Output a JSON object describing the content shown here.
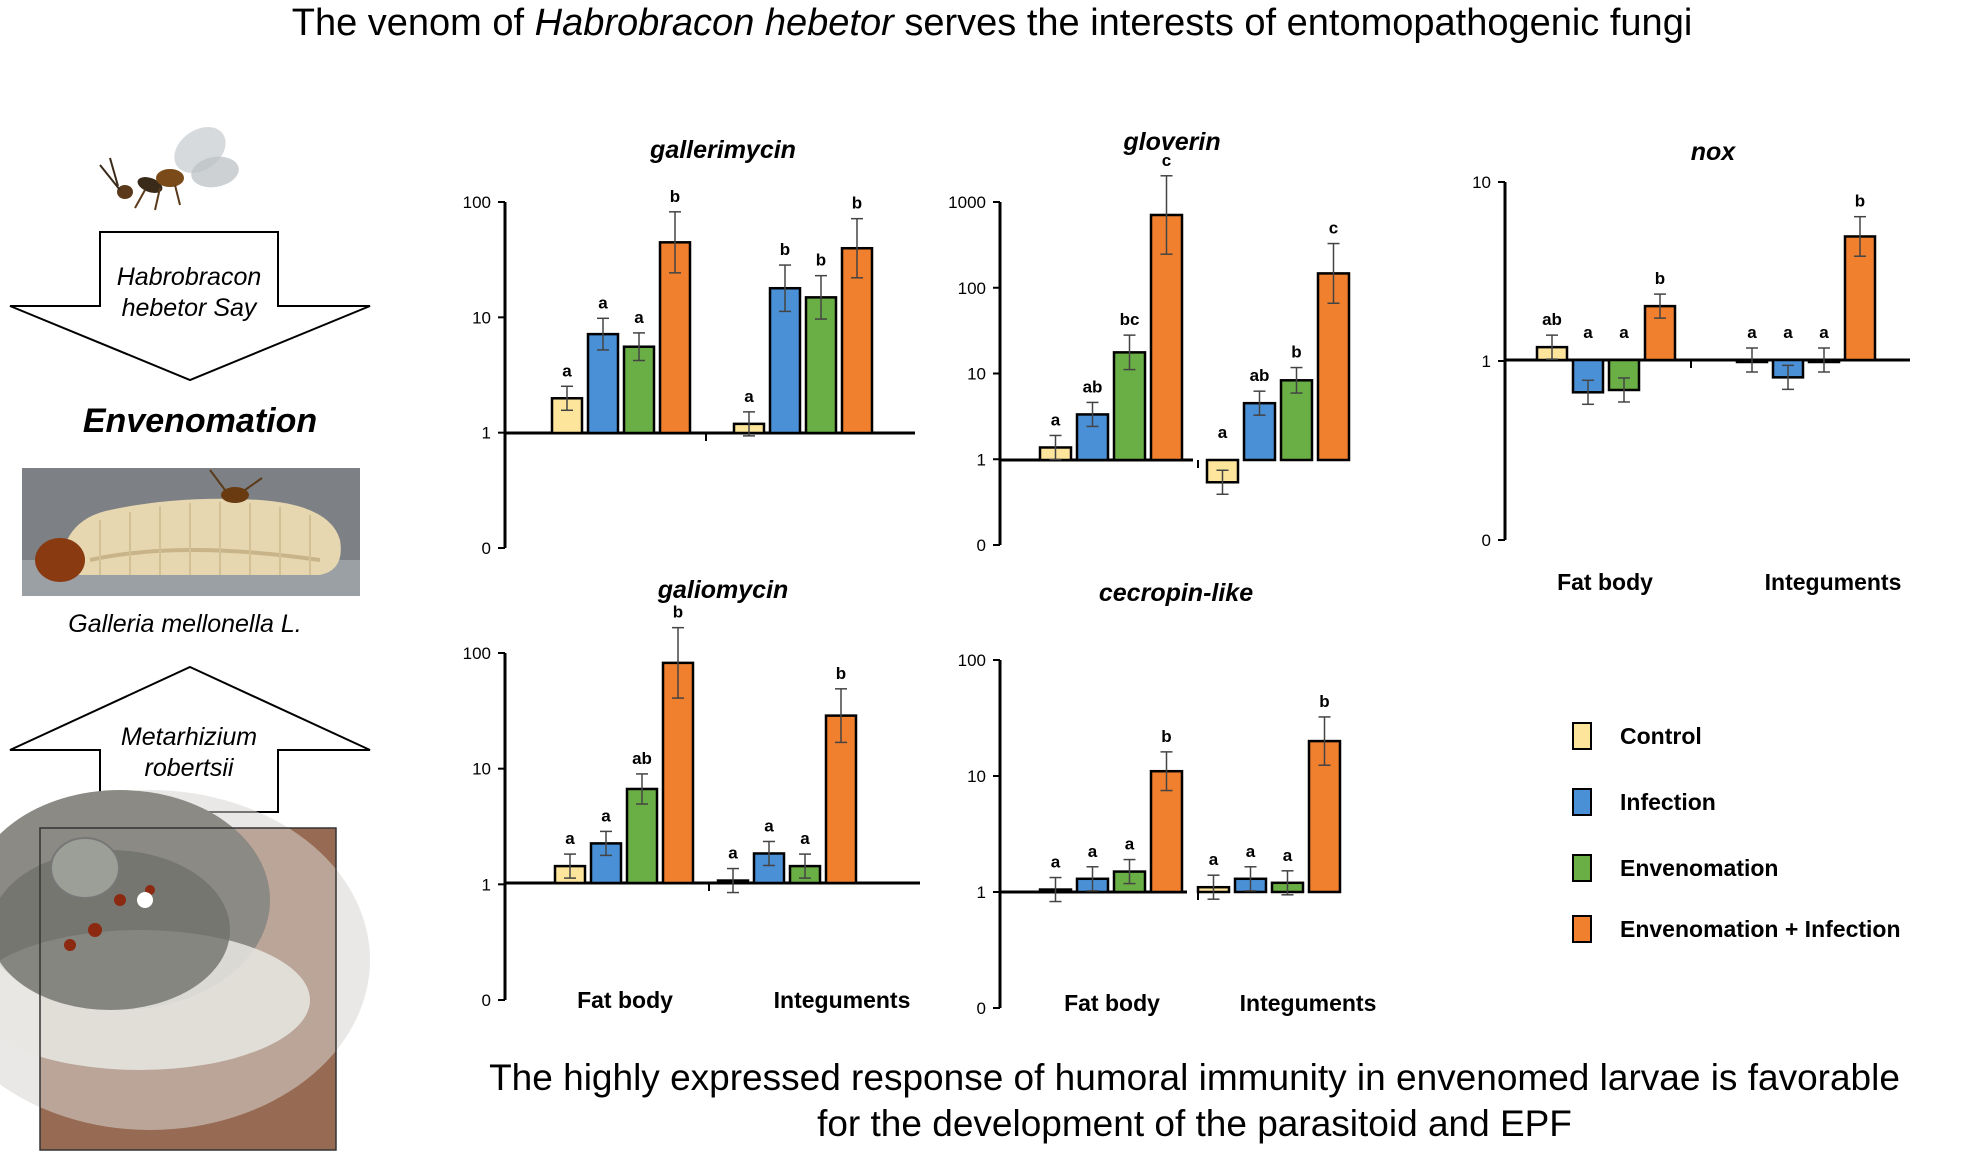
{
  "header": {
    "title_pre": "The venom of ",
    "title_italic": "Habrobracon hebetor",
    "title_post": " serves the interests of entomopathogenic fungi"
  },
  "left_panel": {
    "arrow_down_line1": "Habrobracon",
    "arrow_down_line2": "hebetor Say",
    "envenomation_label": "Envenomation",
    "host_label": "Galleria mellonella L.",
    "arrow_up_line1": "Metarhizium",
    "arrow_up_line2": "robertsii"
  },
  "footer": {
    "line1": "The highly expressed response of humoral immunity in envenomed larvae is favorable",
    "line2": "for the development of the parasitoid and EPF"
  },
  "legend": [
    {
      "label": "Control",
      "color": "#FDE59B"
    },
    {
      "label": "Infection",
      "color": "#4A90D6"
    },
    {
      "label": "Envenomation",
      "color": "#6AAF45"
    },
    {
      "label": "Envenomation + Infection",
      "color": "#F07F2E"
    }
  ],
  "chart_data": [
    {
      "type": "bar",
      "title": "gallerimycin",
      "yscale": "log",
      "yticks": [
        "0",
        "1",
        "10",
        "100"
      ],
      "categories": [
        "Fat body",
        "Integuments"
      ],
      "series": [
        {
          "name": "Control",
          "values": [
            2.0,
            1.2
          ],
          "letters": [
            "a",
            "a"
          ]
        },
        {
          "name": "Infection",
          "values": [
            7.2,
            18.0
          ],
          "letters": [
            "a",
            "b"
          ]
        },
        {
          "name": "Envenomation",
          "values": [
            5.6,
            15.0
          ],
          "letters": [
            "a",
            "b"
          ]
        },
        {
          "name": "Envenomation + Infection",
          "values": [
            45.0,
            40.0
          ],
          "letters": [
            "b",
            "b"
          ]
        }
      ]
    },
    {
      "type": "bar",
      "title": "gloverin",
      "yscale": "log",
      "yticks": [
        "0",
        "1",
        "10",
        "100",
        "1000"
      ],
      "categories": [
        "Fat body",
        "Integuments"
      ],
      "series": [
        {
          "name": "Control",
          "values": [
            1.4,
            0.55
          ],
          "letters": [
            "a",
            "a"
          ]
        },
        {
          "name": "Infection",
          "values": [
            3.4,
            4.6
          ],
          "letters": [
            "ab",
            "ab"
          ]
        },
        {
          "name": "Envenomation",
          "values": [
            18.0,
            8.5
          ],
          "letters": [
            "bc",
            "b"
          ]
        },
        {
          "name": "Envenomation + Infection",
          "values": [
            720.0,
            150.0
          ],
          "letters": [
            "c",
            "c"
          ]
        }
      ]
    },
    {
      "type": "bar",
      "title": "nox",
      "yscale": "log",
      "yticks": [
        "0",
        "1",
        "10"
      ],
      "categories": [
        "Fat body",
        "Integuments"
      ],
      "series": [
        {
          "name": "Control",
          "values": [
            1.18,
            1.0
          ],
          "letters": [
            "ab",
            "a"
          ]
        },
        {
          "name": "Infection",
          "values": [
            0.66,
            0.8
          ],
          "letters": [
            "a",
            "a"
          ]
        },
        {
          "name": "Envenomation",
          "values": [
            0.68,
            1.0
          ],
          "letters": [
            "a",
            "a"
          ]
        },
        {
          "name": "Envenomation + Infection",
          "values": [
            2.0,
            4.9
          ],
          "letters": [
            "b",
            "b"
          ]
        }
      ]
    },
    {
      "type": "bar",
      "title": "galiomycin",
      "yscale": "log",
      "yticks": [
        "0",
        "1",
        "10",
        "100"
      ],
      "categories": [
        "Fat body",
        "Integuments"
      ],
      "series": [
        {
          "name": "Control",
          "values": [
            1.4,
            1.05
          ],
          "letters": [
            "a",
            "a"
          ]
        },
        {
          "name": "Infection",
          "values": [
            2.2,
            1.8
          ],
          "letters": [
            "a",
            "a"
          ]
        },
        {
          "name": "Envenomation",
          "values": [
            6.5,
            1.4
          ],
          "letters": [
            "ab",
            "a"
          ]
        },
        {
          "name": "Envenomation + Infection",
          "values": [
            80.0,
            28.0
          ],
          "letters": [
            "b",
            "b"
          ]
        }
      ]
    },
    {
      "type": "bar",
      "title": "cecropin-like",
      "yscale": "log",
      "yticks": [
        "0",
        "1",
        "10",
        "100"
      ],
      "categories": [
        "Fat body",
        "Integuments"
      ],
      "series": [
        {
          "name": "Control",
          "values": [
            1.05,
            1.1
          ],
          "letters": [
            "a",
            "a"
          ]
        },
        {
          "name": "Infection",
          "values": [
            1.3,
            1.3
          ],
          "letters": [
            "a",
            "a"
          ]
        },
        {
          "name": "Envenomation",
          "values": [
            1.5,
            1.2
          ],
          "letters": [
            "a",
            "a"
          ]
        },
        {
          "name": "Envenomation + Infection",
          "values": [
            11.0,
            20.0
          ],
          "letters": [
            "b",
            "b"
          ]
        }
      ]
    }
  ]
}
